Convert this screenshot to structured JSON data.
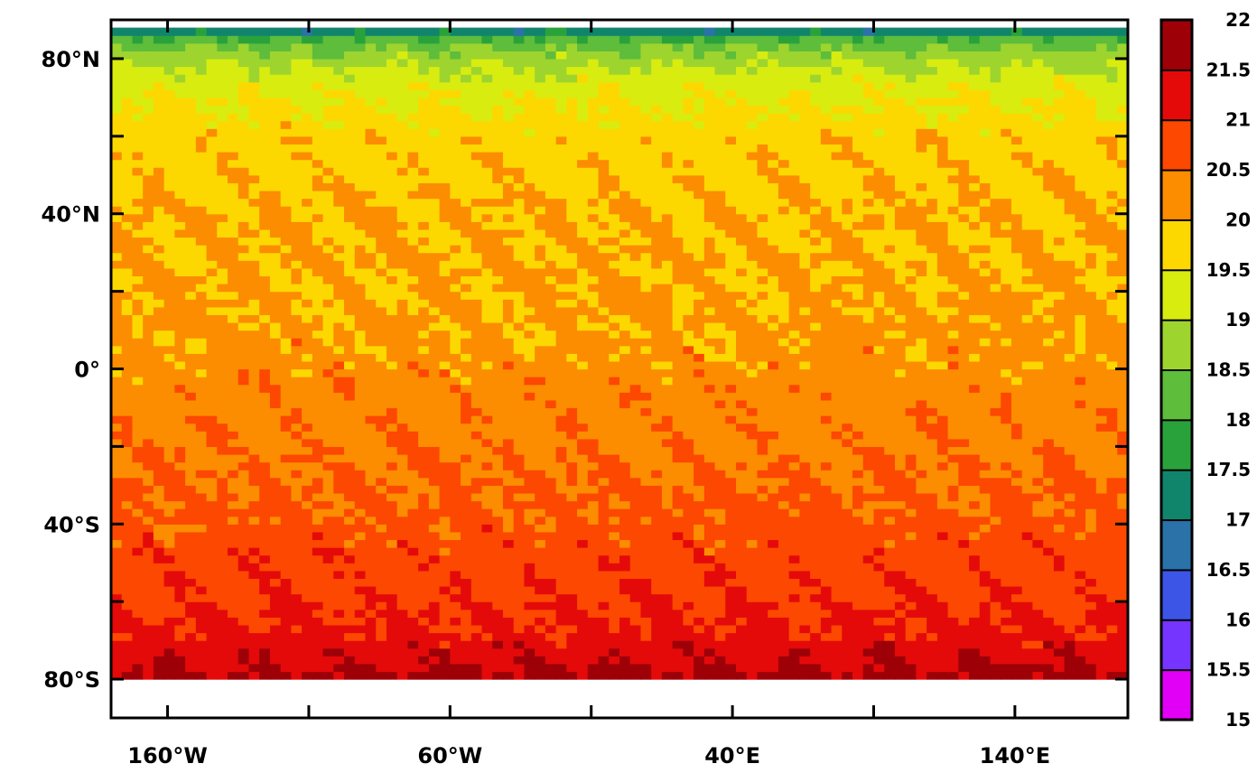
{
  "chart_data": {
    "type": "heatmap",
    "title": "",
    "xlabel": "",
    "ylabel": "",
    "xlim": [
      -180,
      180
    ],
    "ylim": [
      -90,
      90
    ],
    "x_ticks": [
      -160,
      -110,
      -60,
      -10,
      40,
      90,
      140
    ],
    "x_tick_labels": [
      {
        "value": -160,
        "label": "160°W"
      },
      {
        "value": -60,
        "label": "60°W"
      },
      {
        "value": 40,
        "label": "40°E"
      },
      {
        "value": 140,
        "label": "140°E"
      }
    ],
    "y_ticks": [
      -80,
      -60,
      -40,
      -20,
      0,
      20,
      40,
      60,
      80
    ],
    "y_tick_labels": [
      {
        "value": 80,
        "label": "80°N"
      },
      {
        "value": 40,
        "label": "40°N"
      },
      {
        "value": 0,
        "label": "0°"
      },
      {
        "value": -40,
        "label": "40°S"
      },
      {
        "value": -80,
        "label": "80°S"
      }
    ],
    "data_lat_range": [
      -80,
      88
    ],
    "lat_profile": [
      {
        "lat": -80,
        "value": 21.7
      },
      {
        "lat": -75,
        "value": 21.4
      },
      {
        "lat": -68,
        "value": 21.1
      },
      {
        "lat": -55,
        "value": 20.85
      },
      {
        "lat": -40,
        "value": 20.65
      },
      {
        "lat": -20,
        "value": 20.4
      },
      {
        "lat": 0,
        "value": 20.2
      },
      {
        "lat": 20,
        "value": 20.05
      },
      {
        "lat": 45,
        "value": 19.95
      },
      {
        "lat": 60,
        "value": 19.75
      },
      {
        "lat": 72,
        "value": 19.4
      },
      {
        "lat": 78,
        "value": 19.0
      },
      {
        "lat": 82,
        "value": 18.6
      },
      {
        "lat": 85,
        "value": 18.1
      },
      {
        "lat": 88,
        "value": 16.8
      }
    ],
    "colorbar": {
      "levels": [
        15,
        15.5,
        16,
        16.5,
        17,
        17.5,
        18,
        18.5,
        19,
        19.5,
        20,
        20.5,
        21,
        21.5,
        22
      ],
      "level_labels": [
        "15",
        "15.5",
        "16",
        "16.5",
        "17",
        "17.5",
        "18",
        "18.5",
        "19",
        "19.5",
        "20",
        "20.5",
        "21",
        "21.5",
        "22"
      ],
      "colors": [
        "#e100f5",
        "#7634ff",
        "#3c55e6",
        "#2a72a8",
        "#10856c",
        "#2aa23c",
        "#5ebd3b",
        "#9ed42e",
        "#d8ec10",
        "#fcd800",
        "#fc8c00",
        "#fc4800",
        "#e40a0a",
        "#9e0008"
      ]
    }
  }
}
